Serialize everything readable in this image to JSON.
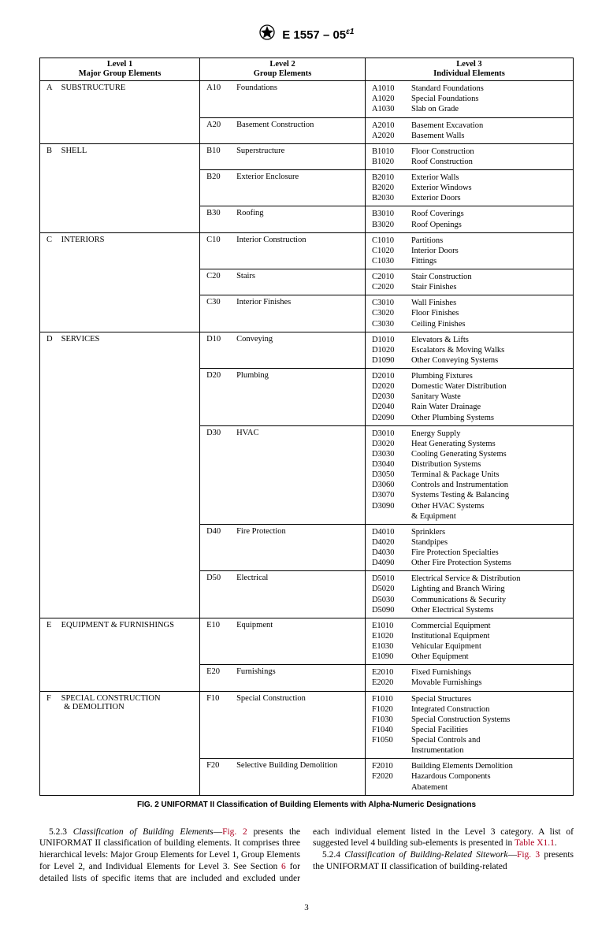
{
  "header": {
    "designation": "E 1557 – 05",
    "epsilon": "ε1"
  },
  "table": {
    "headers": {
      "l1_top": "Level 1",
      "l1_bot": "Major Group Elements",
      "l2_top": "Level 2",
      "l2_bot": "Group Elements",
      "l3_top": "Level 3",
      "l3_bot": "Individual Elements"
    },
    "caption": "FIG. 2 UNIFORMAT II Classification of Building Elements with Alpha-Numeric Designations",
    "majors": [
      {
        "code": "A",
        "name": "SUBSTRUCTURE",
        "groups": [
          {
            "code": "A10",
            "name": "Foundations",
            "items": [
              {
                "code": "A1010",
                "name": "Standard Foundations"
              },
              {
                "code": "A1020",
                "name": "Special Foundations"
              },
              {
                "code": "A1030",
                "name": "Slab on Grade"
              }
            ]
          },
          {
            "code": "A20",
            "name": "Basement Construction",
            "items": [
              {
                "code": "A2010",
                "name": "Basement Excavation"
              },
              {
                "code": "A2020",
                "name": "Basement Walls"
              }
            ]
          }
        ]
      },
      {
        "code": "B",
        "name": "SHELL",
        "groups": [
          {
            "code": "B10",
            "name": "Superstructure",
            "items": [
              {
                "code": "B1010",
                "name": "Floor Construction"
              },
              {
                "code": "B1020",
                "name": "Roof Construction"
              }
            ]
          },
          {
            "code": "B20",
            "name": "Exterior Enclosure",
            "items": [
              {
                "code": "B2010",
                "name": "Exterior Walls"
              },
              {
                "code": "B2020",
                "name": "Exterior Windows"
              },
              {
                "code": "B2030",
                "name": "Exterior Doors"
              }
            ]
          },
          {
            "code": "B30",
            "name": "Roofing",
            "items": [
              {
                "code": "B3010",
                "name": "Roof Coverings"
              },
              {
                "code": "B3020",
                "name": "Roof Openings"
              }
            ]
          }
        ]
      },
      {
        "code": "C",
        "name": "INTERIORS",
        "groups": [
          {
            "code": "C10",
            "name": "Interior Construction",
            "items": [
              {
                "code": "C1010",
                "name": "Partitions"
              },
              {
                "code": "C1020",
                "name": "Interior Doors"
              },
              {
                "code": "C1030",
                "name": "Fittings"
              }
            ]
          },
          {
            "code": "C20",
            "name": "Stairs",
            "items": [
              {
                "code": "C2010",
                "name": "Stair Construction"
              },
              {
                "code": "C2020",
                "name": "Stair Finishes"
              }
            ]
          },
          {
            "code": "C30",
            "name": "Interior Finishes",
            "items": [
              {
                "code": "C3010",
                "name": "Wall Finishes"
              },
              {
                "code": "C3020",
                "name": "Floor Finishes"
              },
              {
                "code": "C3030",
                "name": "Ceiling Finishes"
              }
            ]
          }
        ]
      },
      {
        "code": "D",
        "name": "SERVICES",
        "groups": [
          {
            "code": "D10",
            "name": "Conveying",
            "items": [
              {
                "code": "D1010",
                "name": "Elevators & Lifts"
              },
              {
                "code": "D1020",
                "name": "Escalators & Moving Walks"
              },
              {
                "code": "D1090",
                "name": "Other Conveying Systems"
              }
            ]
          },
          {
            "code": "D20",
            "name": "Plumbing",
            "items": [
              {
                "code": "D2010",
                "name": "Plumbing Fixtures"
              },
              {
                "code": "D2020",
                "name": "Domestic Water Distribution"
              },
              {
                "code": "D2030",
                "name": "Sanitary Waste"
              },
              {
                "code": "D2040",
                "name": "Rain Water Drainage"
              },
              {
                "code": "D2090",
                "name": "Other Plumbing Systems"
              }
            ]
          },
          {
            "code": "D30",
            "name": "HVAC",
            "items": [
              {
                "code": "D3010",
                "name": "Energy Supply"
              },
              {
                "code": "D3020",
                "name": "Heat Generating Systems"
              },
              {
                "code": "D3030",
                "name": "Cooling Generating Systems"
              },
              {
                "code": "D3040",
                "name": "Distribution Systems"
              },
              {
                "code": "D3050",
                "name": "Terminal & Package Units"
              },
              {
                "code": "D3060",
                "name": "Controls and Instrumentation"
              },
              {
                "code": "D3070",
                "name": "Systems Testing & Balancing"
              },
              {
                "code": "D3090",
                "name": "Other HVAC Systems",
                "cont": "& Equipment"
              }
            ]
          },
          {
            "code": "D40",
            "name": "Fire Protection",
            "items": [
              {
                "code": "D4010",
                "name": "Sprinklers"
              },
              {
                "code": "D4020",
                "name": "Standpipes"
              },
              {
                "code": "D4030",
                "name": "Fire Protection Specialties"
              },
              {
                "code": "D4090",
                "name": "Other Fire Protection Systems"
              }
            ]
          },
          {
            "code": "D50",
            "name": "Electrical",
            "items": [
              {
                "code": "D5010",
                "name": "Electrical Service & Distribution"
              },
              {
                "code": "D5020",
                "name": "Lighting and Branch Wiring"
              },
              {
                "code": "D5030",
                "name": "Communications & Security"
              },
              {
                "code": "D5090",
                "name": "Other Electrical Systems"
              }
            ]
          }
        ]
      },
      {
        "code": "E",
        "name": "EQUIPMENT & FURNISHINGS",
        "groups": [
          {
            "code": "E10",
            "name": "Equipment",
            "items": [
              {
                "code": "E1010",
                "name": "Commercial Equipment"
              },
              {
                "code": "E1020",
                "name": "Institutional Equipment"
              },
              {
                "code": "E1030",
                "name": "Vehicular Equipment"
              },
              {
                "code": "E1090",
                "name": "Other Equipment"
              }
            ]
          },
          {
            "code": "E20",
            "name": "Furnishings",
            "items": [
              {
                "code": "E2010",
                "name": "Fixed Furnishings"
              },
              {
                "code": "E2020",
                "name": "Movable Furnishings"
              }
            ]
          }
        ]
      },
      {
        "code": "F",
        "name": "SPECIAL CONSTRUCTION",
        "name2": "& DEMOLITION",
        "groups": [
          {
            "code": "F10",
            "name": "Special Construction",
            "items": [
              {
                "code": "F1010",
                "name": "Special Structures"
              },
              {
                "code": "F1020",
                "name": "Integrated Construction"
              },
              {
                "code": "F1030",
                "name": "Special Construction Systems"
              },
              {
                "code": "F1040",
                "name": "Special Facilities"
              },
              {
                "code": "F1050",
                "name": "Special Controls and",
                "cont": "Instrumentation"
              }
            ]
          },
          {
            "code": "F20",
            "name": "Selective Building Demolition",
            "items": [
              {
                "code": "F2010",
                "name": "Building Elements Demolition"
              },
              {
                "code": "F2020",
                "name": "Hazardous Components",
                "cont": "Abatement"
              }
            ]
          }
        ]
      }
    ]
  },
  "body": {
    "p1_lead": "5.2.3 ",
    "p1_ital": "Classification of Building Elements",
    "p1_dash": "—",
    "p1_fig": "Fig. 2",
    "p1_rest1": " presents the UNIFORMAT II classification of building elements. It comprises three hierarchical levels: Major Group Elements for Level 1, Group Elements for Level 2, and Individual Elements for Level 3. See Section ",
    "p1_sec": "6",
    "p1_rest2": " for detailed lists of specific items that are included and excluded under each individual element listed in the Level 3 category. A list of suggested level 4 building sub-elements is presented in ",
    "p1_tbl": "Table X1.1",
    "p1_end": ".",
    "p2_lead": "5.2.4 ",
    "p2_ital": "Classification of Building-Related Sitework",
    "p2_dash": "—",
    "p2_fig": "Fig. 3",
    "p2_rest": " presents the UNIFORMAT II classification of building-related"
  },
  "pagenum": "3"
}
